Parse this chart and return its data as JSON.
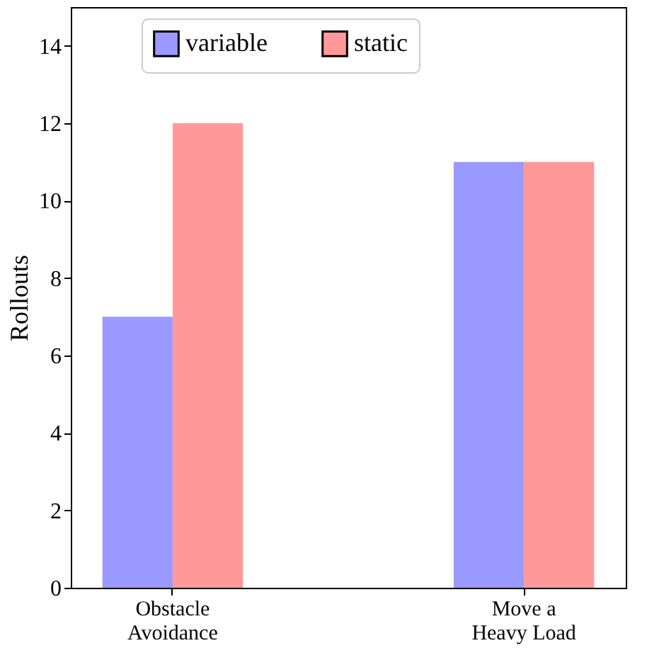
{
  "chart_data": {
    "type": "bar",
    "ylabel": "Rollouts",
    "categories": [
      "Obstacle\nAvoidance",
      "Move a\nHeavy Load"
    ],
    "series": [
      {
        "name": "variable",
        "color": "#9999ff",
        "values": [
          7,
          11
        ]
      },
      {
        "name": "static",
        "color": "#ff9999",
        "values": [
          12,
          11
        ]
      }
    ],
    "ylim": [
      0,
      15
    ],
    "yticks": [
      0,
      2,
      4,
      6,
      8,
      10,
      12,
      14
    ],
    "legend": "top",
    "grid": false
  }
}
